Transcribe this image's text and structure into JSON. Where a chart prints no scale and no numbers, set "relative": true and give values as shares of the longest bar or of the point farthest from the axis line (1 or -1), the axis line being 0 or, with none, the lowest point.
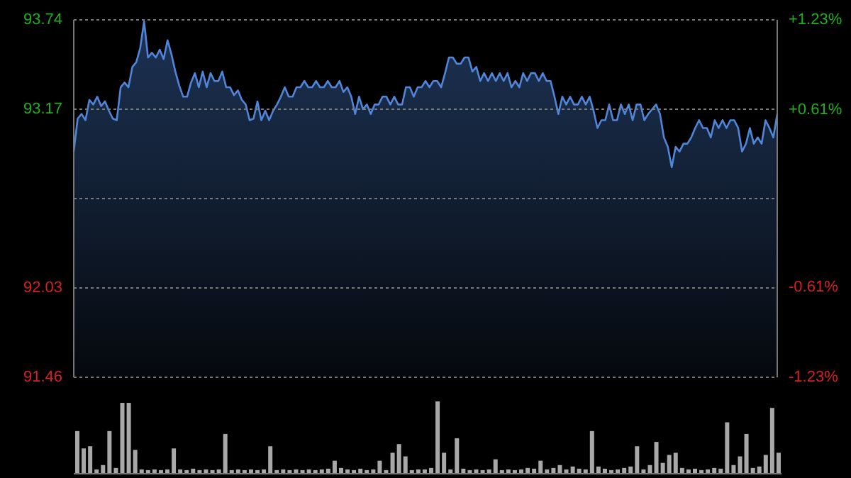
{
  "chart_data": [
    {
      "type": "area",
      "categories": [
        null,
        null,
        null,
        null,
        null,
        null,
        null,
        null,
        null,
        null,
        null,
        null,
        null,
        null,
        null,
        null,
        null,
        null,
        null,
        null,
        null,
        null,
        null,
        null,
        null,
        null,
        null,
        null,
        null,
        null,
        null,
        null,
        null,
        null,
        null,
        null,
        null,
        null,
        null,
        null,
        null,
        null,
        null,
        null,
        null,
        null,
        null,
        null,
        null,
        null,
        null,
        null,
        null,
        null,
        null,
        null,
        null,
        null,
        null,
        null,
        null,
        null,
        null,
        null,
        null,
        null,
        null,
        null,
        null,
        null,
        null,
        null,
        null,
        null,
        null,
        null,
        null,
        null,
        null,
        null,
        null,
        null,
        null,
        null,
        null,
        null,
        null,
        null,
        null,
        null,
        null,
        null,
        null,
        null,
        null,
        null,
        null,
        null,
        null,
        null,
        null,
        null,
        null,
        null,
        null,
        null,
        null,
        null,
        null,
        null,
        null,
        null,
        null,
        null,
        null,
        null,
        null,
        null,
        null,
        null,
        null,
        null,
        null,
        null,
        null,
        null,
        null,
        null,
        null,
        null,
        null,
        null,
        null,
        null,
        null,
        null,
        null,
        null,
        null,
        null,
        null,
        null,
        null,
        null,
        null,
        null,
        null,
        null,
        null,
        null,
        null,
        null,
        null,
        null,
        null,
        null,
        null,
        null,
        null,
        null,
        null,
        null,
        null,
        null,
        null,
        null,
        null,
        null,
        null,
        null,
        null,
        null,
        null,
        null,
        null,
        null,
        null,
        null,
        null,
        null,
        null
      ],
      "series": [
        {
          "type": "area",
          "color": "#4f86d9",
          "values": [
            92.9,
            93.11,
            93.14,
            93.1,
            93.23,
            93.2,
            93.25,
            93.19,
            93.22,
            93.16,
            93.11,
            93.1,
            93.31,
            93.34,
            93.31,
            93.44,
            93.47,
            93.56,
            93.73,
            93.5,
            93.53,
            93.5,
            93.55,
            93.49,
            93.61,
            93.52,
            93.41,
            93.32,
            93.25,
            93.25,
            93.34,
            93.4,
            93.31,
            93.41,
            93.31,
            93.4,
            93.35,
            93.35,
            93.41,
            93.31,
            93.31,
            93.26,
            93.29,
            93.23,
            93.2,
            93.1,
            93.11,
            93.22,
            93.1,
            93.16,
            93.1,
            93.16,
            93.2,
            93.25,
            93.31,
            93.25,
            93.25,
            93.31,
            93.31,
            93.35,
            93.31,
            93.31,
            93.35,
            93.31,
            93.31,
            93.35,
            93.31,
            93.31,
            93.35,
            93.28,
            93.31,
            93.25,
            93.14,
            93.25,
            93.17,
            93.2,
            93.14,
            93.2,
            93.2,
            93.25,
            93.25,
            93.2,
            93.25,
            93.2,
            93.2,
            93.31,
            93.31,
            93.25,
            93.31,
            93.31,
            93.35,
            93.31,
            93.35,
            93.35,
            93.31,
            93.4,
            93.5,
            93.5,
            93.46,
            93.46,
            93.5,
            93.5,
            93.41,
            93.44,
            93.35,
            93.4,
            93.35,
            93.4,
            93.35,
            93.4,
            93.35,
            93.4,
            93.31,
            93.35,
            93.31,
            93.4,
            93.35,
            93.4,
            93.4,
            93.35,
            93.4,
            93.35,
            93.35,
            93.25,
            93.14,
            93.25,
            93.2,
            93.25,
            93.2,
            93.2,
            93.25,
            93.2,
            93.25,
            93.16,
            93.05,
            93.1,
            93.1,
            93.2,
            93.1,
            93.1,
            93.2,
            93.14,
            93.2,
            93.1,
            93.2,
            93.2,
            93.1,
            93.14,
            93.17,
            93.2,
            93.14,
            92.99,
            92.93,
            92.8,
            92.93,
            92.9,
            92.95,
            92.95,
            92.99,
            93.05,
            93.1,
            93.05,
            93.05,
            92.99,
            93.1,
            93.05,
            93.1,
            93.05,
            93.1,
            93.1,
            93.05,
            92.9,
            92.95,
            93.05,
            92.95,
            92.99,
            92.95,
            93.1,
            93.05,
            92.99,
            93.14
          ]
        }
      ],
      "ylim": [
        91.46,
        93.74
      ],
      "yticks": [
        91.46,
        92.03,
        {
          "value": 92.6,
          "label": null
        },
        93.17,
        93.74
      ],
      "y2lim": [
        -1.23,
        1.23
      ],
      "y2ticks": [
        {
          "value": -1.23,
          "label": "-1.23%"
        },
        {
          "value": -0.61,
          "label": "-0.61%"
        },
        {
          "value": 0.61,
          "label": "+0.61%"
        },
        {
          "value": 1.23,
          "label": "+1.23%"
        }
      ],
      "grid": "y",
      "tick_labels": "y"
    },
    {
      "type": "bar",
      "relative": true,
      "tick_labels": false,
      "color": "#a8a8a8",
      "categories": [
        null,
        null,
        null,
        null,
        null,
        null,
        null,
        null,
        null,
        null,
        null,
        null,
        null,
        null,
        null,
        null,
        null,
        null,
        null,
        null,
        null,
        null,
        null,
        null,
        null,
        null,
        null,
        null,
        null,
        null,
        null,
        null,
        null,
        null,
        null,
        null,
        null,
        null,
        null,
        null,
        null,
        null,
        null,
        null,
        null,
        null,
        null,
        null,
        null,
        null,
        null,
        null,
        null,
        null,
        null,
        null,
        null,
        null,
        null,
        null,
        null,
        null,
        null,
        null,
        null,
        null,
        null,
        null,
        null,
        null,
        null,
        null,
        null,
        null,
        null,
        null,
        null,
        null,
        null,
        null,
        null,
        null,
        null,
        null,
        null,
        null,
        null,
        null,
        null,
        null,
        null,
        null,
        null,
        null,
        null,
        null,
        null,
        null,
        null,
        null,
        null,
        null,
        null,
        null,
        null,
        null,
        null,
        null,
        null,
        null
      ],
      "values": [
        0.59,
        0.35,
        0.38,
        0.06,
        0.12,
        0.59,
        0.08,
        0.98,
        0.98,
        0.33,
        0.06,
        0.05,
        0.06,
        0.05,
        0.06,
        0.35,
        0.06,
        0.05,
        0.07,
        0.05,
        0.06,
        0.05,
        0.06,
        0.55,
        0.05,
        0.06,
        0.05,
        0.06,
        0.05,
        0.06,
        0.38,
        0.05,
        0.06,
        0.05,
        0.06,
        0.05,
        0.06,
        0.05,
        0.06,
        0.07,
        0.18,
        0.08,
        0.06,
        0.05,
        0.07,
        0.05,
        0.06,
        0.18,
        0.05,
        0.29,
        0.41,
        0.24,
        0.05,
        0.06,
        0.06,
        0.08,
        1,
        0.29,
        0.06,
        0.49,
        0.07,
        0.05,
        0.06,
        0.05,
        0.06,
        0.2,
        0.05,
        0.06,
        0.05,
        0.06,
        0.08,
        0.07,
        0.18,
        0.06,
        0.08,
        0.12,
        0.06,
        0.1,
        0.07,
        0.06,
        0.59,
        0.1,
        0.07,
        0.05,
        0.06,
        0.08,
        0.1,
        0.38,
        0.06,
        0.12,
        0.44,
        0.15,
        0.26,
        0.29,
        0.08,
        0.06,
        0.07,
        0.05,
        0.06,
        0.08,
        0.07,
        0.71,
        0.12,
        0.24,
        0.55,
        0.08,
        0.1,
        0.26,
        0.91,
        0.29
      ]
    }
  ]
}
